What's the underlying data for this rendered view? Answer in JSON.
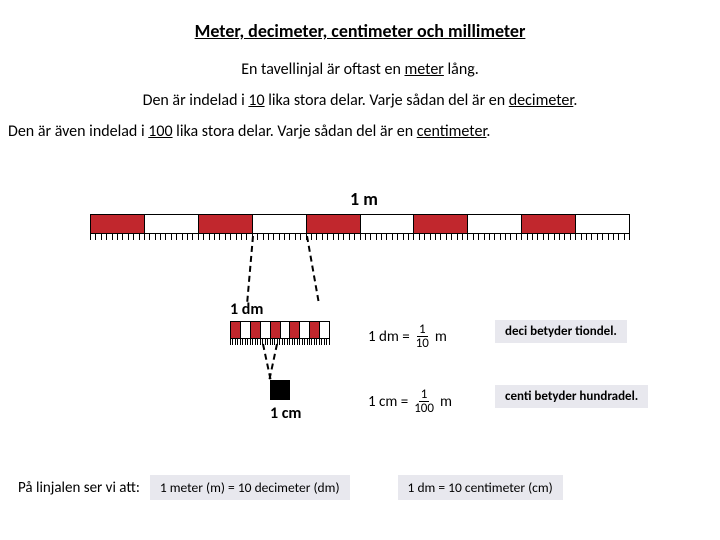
{
  "colors": {
    "red": "#c1272d",
    "white": "#ffffff",
    "black": "#000000",
    "box_bg": "#e8e8ee"
  },
  "title": "Meter, decimeter, centimeter och millimeter",
  "intro": {
    "line1_a": "En tavellinjal är oftast en ",
    "line1_u": "meter",
    "line1_b": " lång.",
    "line2_a": "Den är indelad i ",
    "line2_u1": "10",
    "line2_b": " lika stora delar.  Varje sådan del är en ",
    "line2_u2": "decimeter",
    "line2_c": ".",
    "line3_a": "Den är även indelad i ",
    "line3_u1": "100",
    "line3_b": " lika stora delar.  Varje sådan del är en ",
    "line3_u2": "centimeter",
    "line3_c": "."
  },
  "labels": {
    "one_m": "1 m",
    "one_dm": "1 dm",
    "one_cm": "1 cm"
  },
  "ruler": {
    "segments": 10,
    "cm_ticks": 100,
    "dm_subsegments": 10,
    "mm_ticks": 40
  },
  "dm_eq": {
    "lhs": "1 dm =",
    "num": "1",
    "den": "10",
    "unit": " m"
  },
  "cm_eq": {
    "lhs": "1 cm =",
    "num": "1",
    "den": "100",
    "unit": " m"
  },
  "notes": {
    "deci": "deci betyder tiondel.",
    "centi": "centi betyder hundradel."
  },
  "bottom": {
    "label": "På linjalen ser vi att:",
    "box1": "1 meter (m) = 10 decimeter (dm)",
    "box2": "1 dm = 10 centimeter (cm)"
  }
}
